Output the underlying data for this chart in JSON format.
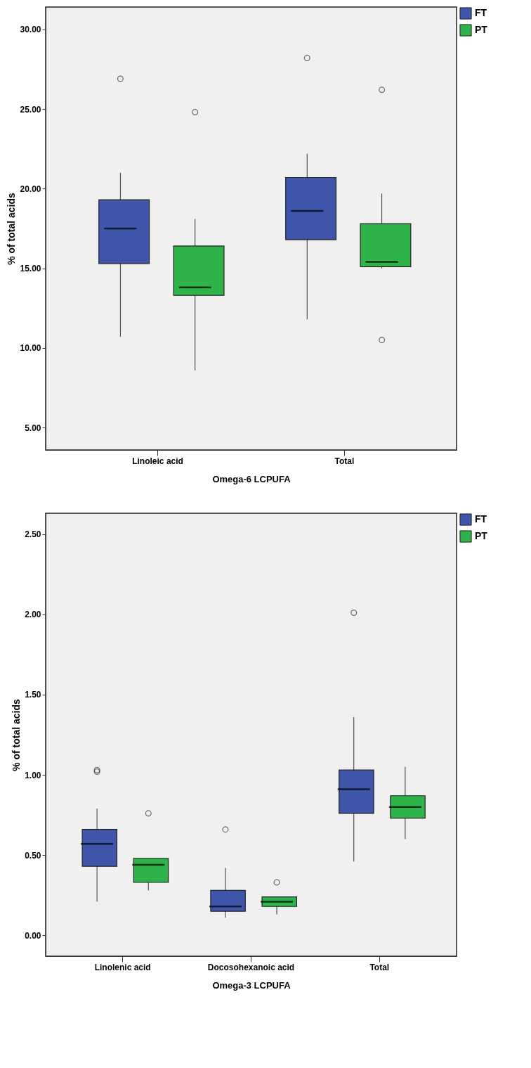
{
  "chart_data": [
    {
      "type": "box",
      "xlabel": "Omega-6 LCPUFA",
      "ylabel": "% of total acids",
      "categories": [
        "Linoleic acid",
        "Total"
      ],
      "ylim": [
        3.6,
        31.4
      ],
      "yticks": [
        {
          "value": 5,
          "label": "5.00"
        },
        {
          "value": 10,
          "label": "10.00"
        },
        {
          "value": 15,
          "label": "15.00"
        },
        {
          "value": 20,
          "label": "20.00"
        },
        {
          "value": 25,
          "label": "25.00"
        },
        {
          "value": 30,
          "label": "30.00"
        }
      ],
      "legend": "top right",
      "series": [
        {
          "name": "FT",
          "color": "#3f55a9",
          "boxes": [
            {
              "low": 10.7,
              "q1": 15.3,
              "median": 17.5,
              "q3": 19.3,
              "high": 21.0,
              "outliers": [
                26.9
              ]
            },
            {
              "low": 11.8,
              "q1": 16.8,
              "median": 18.6,
              "q3": 20.7,
              "high": 22.2,
              "outliers": [
                28.2
              ]
            }
          ]
        },
        {
          "name": "PT",
          "color": "#2db34a",
          "boxes": [
            {
              "low": 8.6,
              "q1": 13.3,
              "median": 13.8,
              "q3": 16.4,
              "high": 18.1,
              "outliers": [
                24.8
              ]
            },
            {
              "low": 15.0,
              "q1": 15.1,
              "median": 15.4,
              "q3": 17.8,
              "high": 19.7,
              "outliers": [
                26.2,
                10.5
              ]
            }
          ]
        }
      ]
    },
    {
      "type": "box",
      "xlabel": "Omega-3 LCPUFA",
      "ylabel": "% of total acids",
      "categories": [
        "Linolenic acid",
        "Docosohexanoic acid",
        "Total"
      ],
      "ylim": [
        -0.13,
        2.63
      ],
      "yticks": [
        {
          "value": 0,
          "label": "0.00"
        },
        {
          "value": 0.5,
          "label": "0.50"
        },
        {
          "value": 1,
          "label": "1.00"
        },
        {
          "value": 1.5,
          "label": "1.50"
        },
        {
          "value": 2,
          "label": "2.00"
        },
        {
          "value": 2.5,
          "label": "2.50"
        }
      ],
      "legend": "top right",
      "series": [
        {
          "name": "FT",
          "color": "#3f55a9",
          "boxes": [
            {
              "low": 0.21,
              "q1": 0.43,
              "median": 0.57,
              "q3": 0.66,
              "high": 0.79,
              "outliers": [
                1.02,
                1.03
              ]
            },
            {
              "low": 0.11,
              "q1": 0.15,
              "median": 0.18,
              "q3": 0.28,
              "high": 0.42,
              "outliers": [
                0.66
              ]
            },
            {
              "low": 0.46,
              "q1": 0.76,
              "median": 0.91,
              "q3": 1.03,
              "high": 1.36,
              "outliers": [
                2.01
              ]
            }
          ]
        },
        {
          "name": "PT",
          "color": "#2db34a",
          "boxes": [
            {
              "low": 0.28,
              "q1": 0.33,
              "median": 0.44,
              "q3": 0.48,
              "high": 0.48,
              "outliers": [
                0.76
              ]
            },
            {
              "low": 0.13,
              "q1": 0.18,
              "median": 0.21,
              "q3": 0.24,
              "high": 0.24,
              "outliers": [
                0.33
              ]
            },
            {
              "low": 0.6,
              "q1": 0.73,
              "median": 0.8,
              "q3": 0.87,
              "high": 1.05
            }
          ]
        }
      ]
    }
  ]
}
